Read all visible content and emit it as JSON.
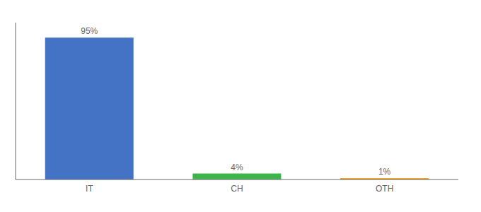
{
  "chart_data": {
    "type": "bar",
    "categories": [
      "IT",
      "CH",
      "OTH"
    ],
    "values": [
      95,
      4,
      1
    ],
    "value_labels": [
      "95%",
      "4%",
      "1%"
    ],
    "data_labels": true,
    "colors": [
      "#4472c4",
      "#3cb54a",
      "#f5a623"
    ],
    "ylim": [
      0,
      105
    ],
    "tick_labels": "x",
    "grid": false
  }
}
